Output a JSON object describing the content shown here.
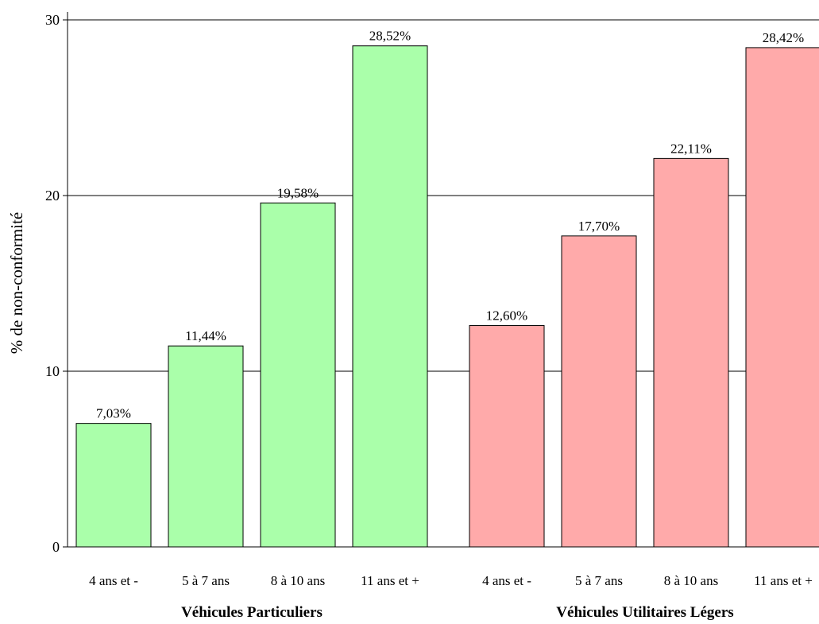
{
  "chart_data": {
    "type": "bar",
    "ylabel": "% de non-conformité",
    "ylim": [
      0,
      30
    ],
    "yticks": [
      "0",
      "10",
      "20",
      "30"
    ],
    "grid": true,
    "groups": [
      {
        "name": "Véhicules Particuliers",
        "color": "#aaffaa",
        "categories": [
          "4 ans et -",
          "5 à 7 ans",
          "8 à 10 ans",
          "11 ans et +"
        ],
        "values": [
          7.03,
          11.44,
          19.58,
          28.52
        ],
        "labels": [
          "7,03%",
          "11,44%",
          "19,58%",
          "28,52%"
        ]
      },
      {
        "name": "Véhicules Utilitaires Légers",
        "color": "#ffaaaa",
        "categories": [
          "4 ans et -",
          "5 à 7 ans",
          "8 à 10 ans",
          "11 ans et +"
        ],
        "values": [
          12.6,
          17.7,
          22.11,
          28.42
        ],
        "labels": [
          "12,60%",
          "17,70%",
          "22,11%",
          "28,42%"
        ]
      }
    ]
  }
}
